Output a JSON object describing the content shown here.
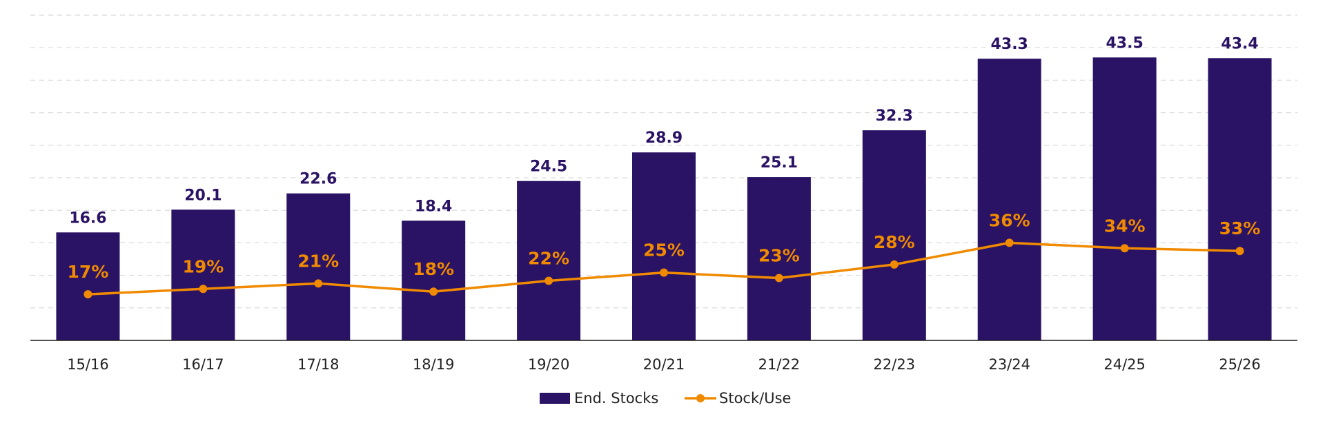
{
  "chart_data": {
    "type": "bar",
    "categories": [
      "15/16",
      "16/17",
      "17/18",
      "18/19",
      "19/20",
      "20/21",
      "21/22",
      "22/23",
      "23/24",
      "24/25",
      "25/26"
    ],
    "series": [
      {
        "name": "End. Stocks",
        "type": "bar",
        "values": [
          16.6,
          20.1,
          22.6,
          18.4,
          24.5,
          28.9,
          25.1,
          32.3,
          43.3,
          43.5,
          43.4
        ],
        "labels": [
          "16.6",
          "20.1",
          "22.6",
          "18.4",
          "24.5",
          "28.9",
          "25.1",
          "32.3",
          "43.3",
          "43.5",
          "43.4"
        ],
        "color": "#2a1264"
      },
      {
        "name": "Stock/Use",
        "type": "line",
        "values": [
          17,
          19,
          21,
          18,
          22,
          25,
          23,
          28,
          36,
          34,
          33
        ],
        "labels": [
          "17%",
          "19%",
          "21%",
          "18%",
          "22%",
          "25%",
          "23%",
          "28%",
          "36%",
          "34%",
          "33%"
        ],
        "color": "#f08a00"
      }
    ],
    "ylim": [
      0,
      50
    ],
    "ylim_secondary": [
      0,
      120
    ],
    "grid": true,
    "legend_position": "bottom-center",
    "legend": [
      {
        "label": "End. Stocks",
        "marker": "bar"
      },
      {
        "label": "Stock/Use",
        "marker": "line-dot"
      }
    ]
  }
}
